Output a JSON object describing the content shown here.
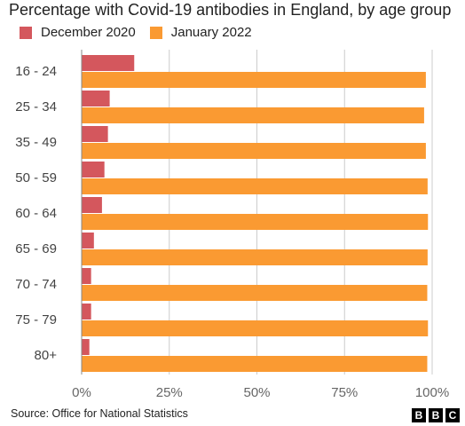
{
  "colors": {
    "december": "#d4575d",
    "january": "#fa9a32",
    "grid": "#cccccc",
    "axis": "#888888",
    "tick_text": "#666666"
  },
  "chart_data": {
    "type": "bar",
    "orientation": "horizontal",
    "title": "Percentage with Covid-19 antibodies in England, by age group",
    "categories": [
      "16 - 24",
      "25 - 34",
      "35 - 49",
      "50 - 59",
      "60 - 64",
      "65 - 69",
      "70 - 74",
      "75 - 79",
      "80+"
    ],
    "series": [
      {
        "name": "December 2020",
        "color": "#d4575d",
        "values": [
          15.0,
          8.0,
          7.5,
          6.5,
          5.8,
          3.5,
          2.7,
          2.7,
          2.2
        ]
      },
      {
        "name": "January 2022",
        "color": "#fa9a32",
        "values": [
          98.2,
          97.7,
          98.2,
          98.7,
          98.8,
          98.7,
          98.6,
          98.8,
          98.6
        ]
      }
    ],
    "xlim": [
      0,
      100
    ],
    "xticks": [
      0,
      25,
      50,
      75,
      100
    ],
    "xtick_labels": [
      "0%",
      "25%",
      "50%",
      "75%",
      "100%"
    ],
    "grid": "vertical",
    "legend_position": "top-left",
    "source": "Source: Office for National Statistics"
  },
  "branding": {
    "logo_letters": [
      "B",
      "B",
      "C"
    ]
  }
}
